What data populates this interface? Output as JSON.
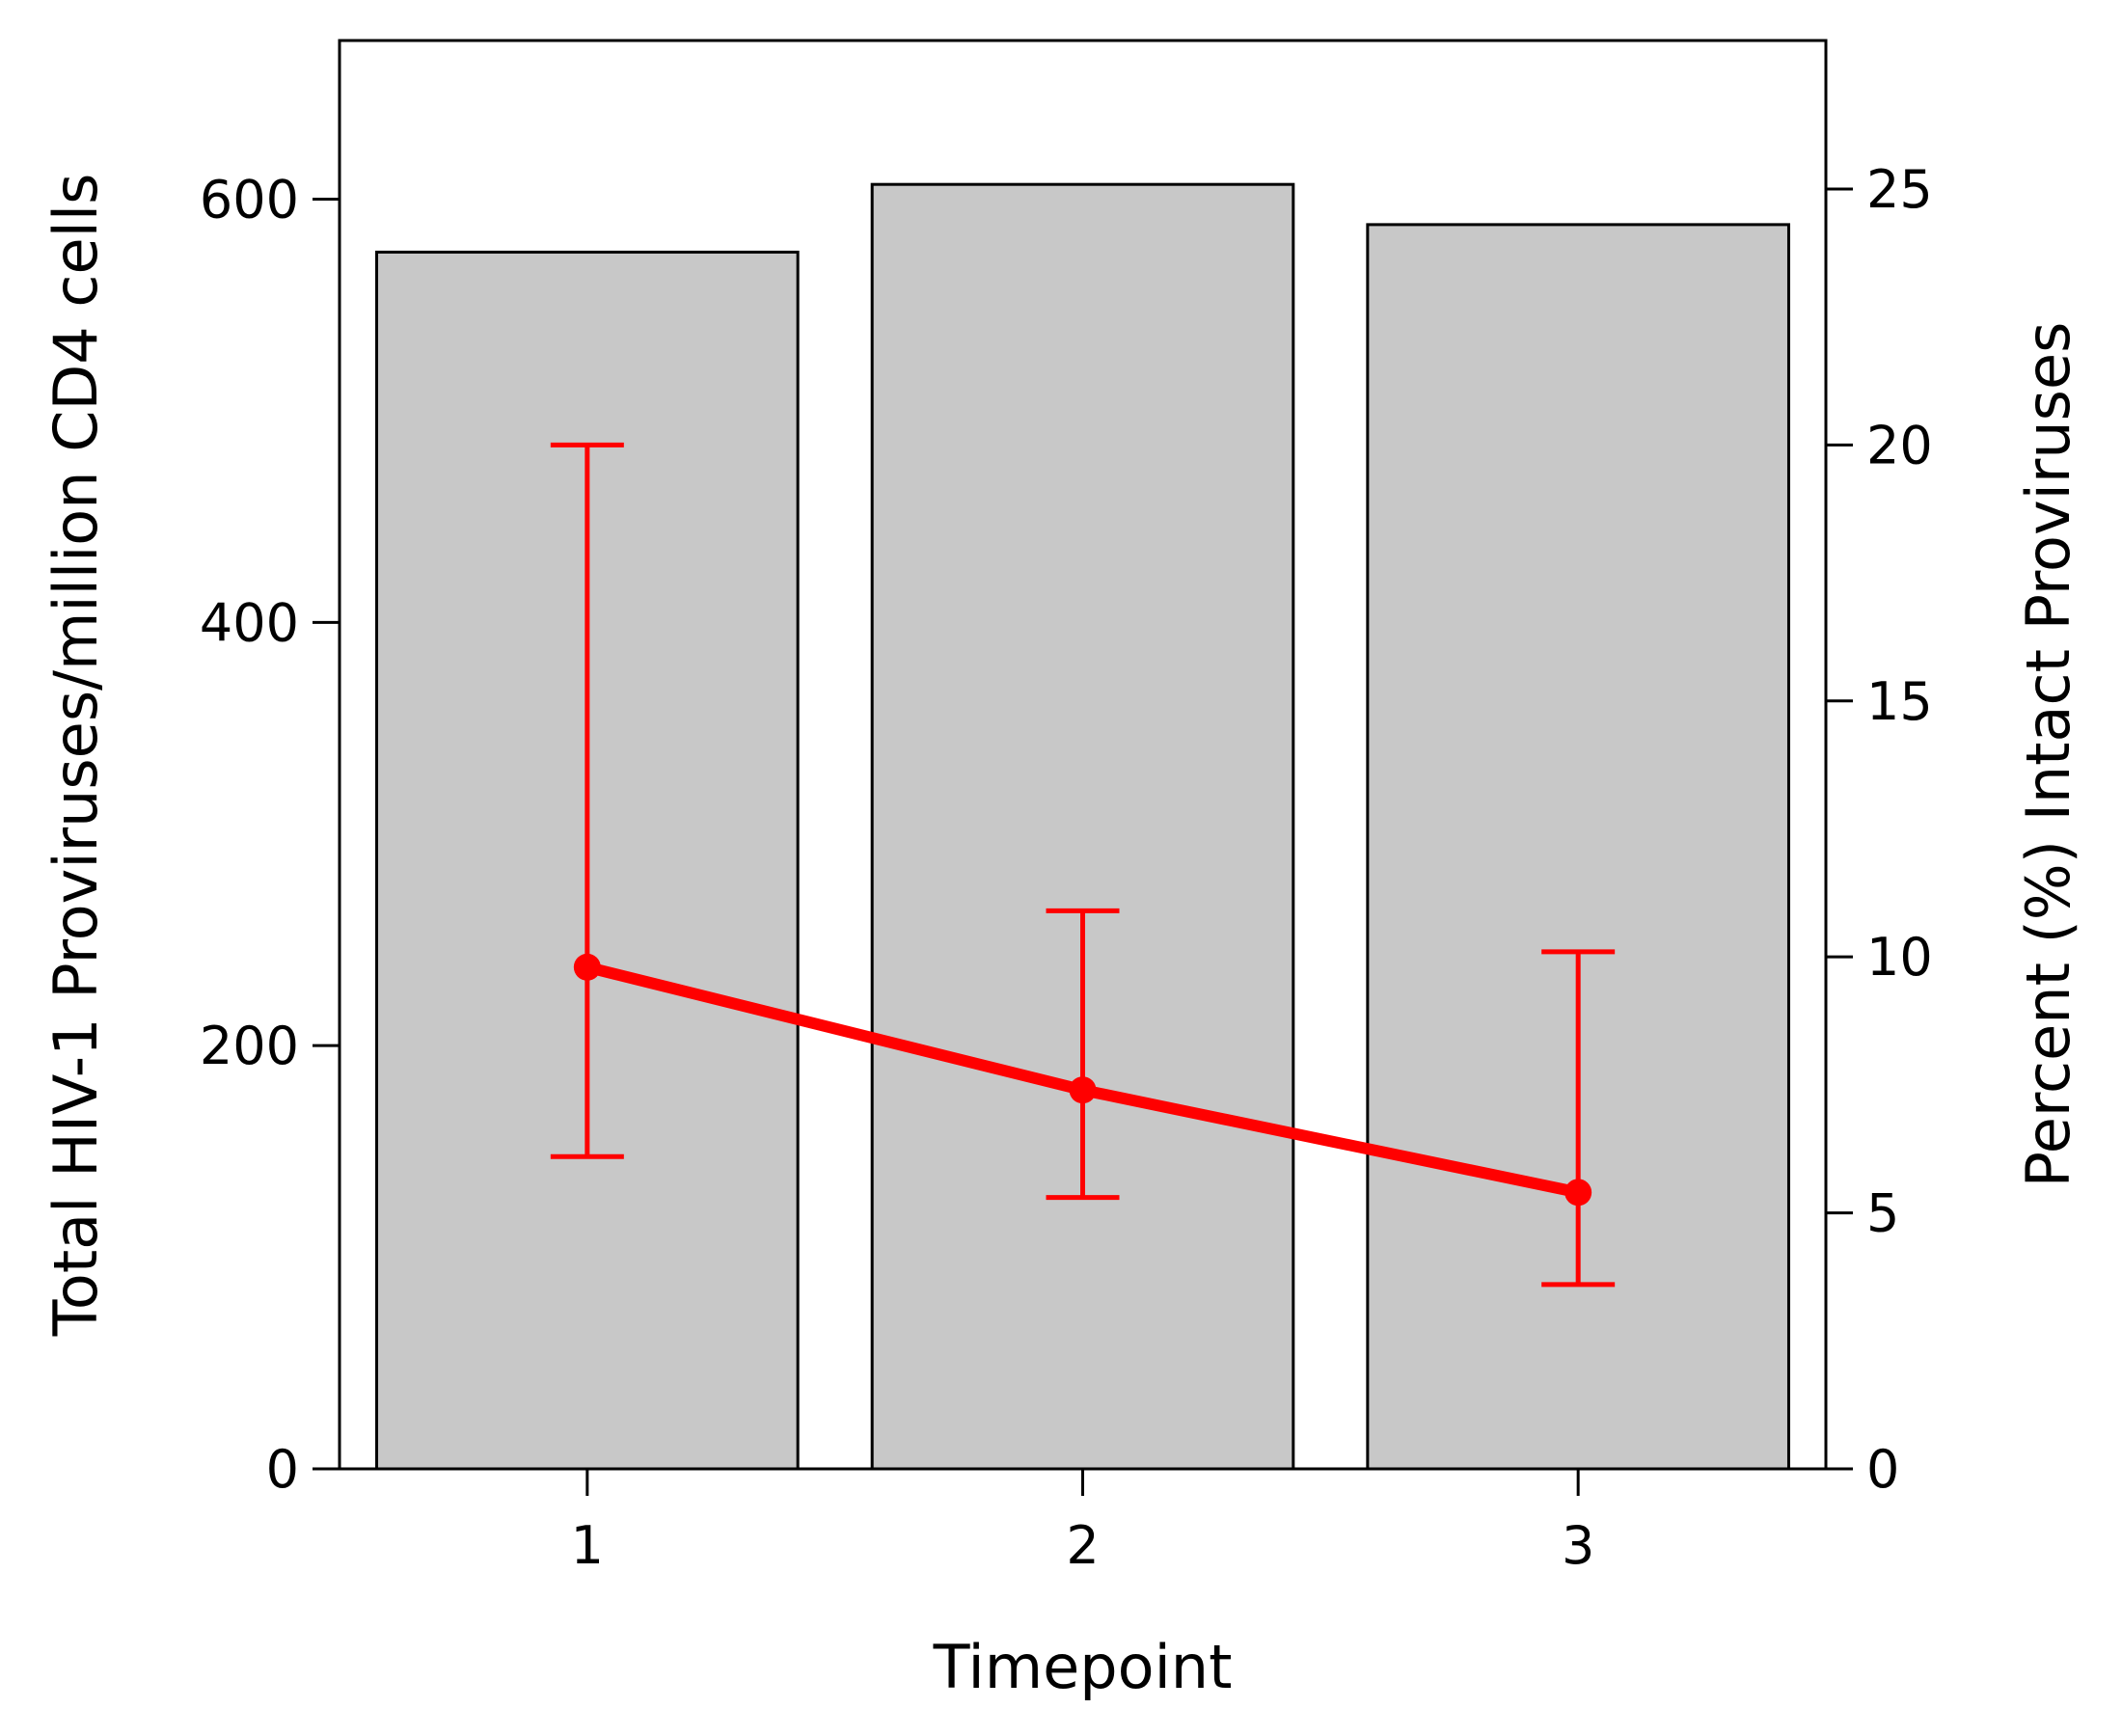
{
  "chart_data": {
    "type": "bar",
    "xlabel": "Timepoint",
    "ylabel": "Total HIV-1 Proviruses/million CD4 cells",
    "y2label": "Percent (%) Intact Proviruses",
    "categories": [
      "1",
      "2",
      "3"
    ],
    "ylim": [
      0,
      675
    ],
    "y2lim": [
      0,
      27.9
    ],
    "yticks": [
      0,
      200,
      400,
      600
    ],
    "y2ticks": [
      0,
      5,
      10,
      15,
      20,
      25
    ],
    "grid": false,
    "series": [
      {
        "kind": "bar",
        "axis": "left",
        "color": "#c8c8c8",
        "values": [
          575,
          607,
          588
        ]
      },
      {
        "kind": "line",
        "axis": "right",
        "color": "#ff0000",
        "values": [
          9.8,
          7.4,
          5.4
        ],
        "error_low": [
          6.1,
          5.3,
          3.6
        ],
        "error_high": [
          20.0,
          10.9,
          10.1
        ]
      }
    ]
  }
}
